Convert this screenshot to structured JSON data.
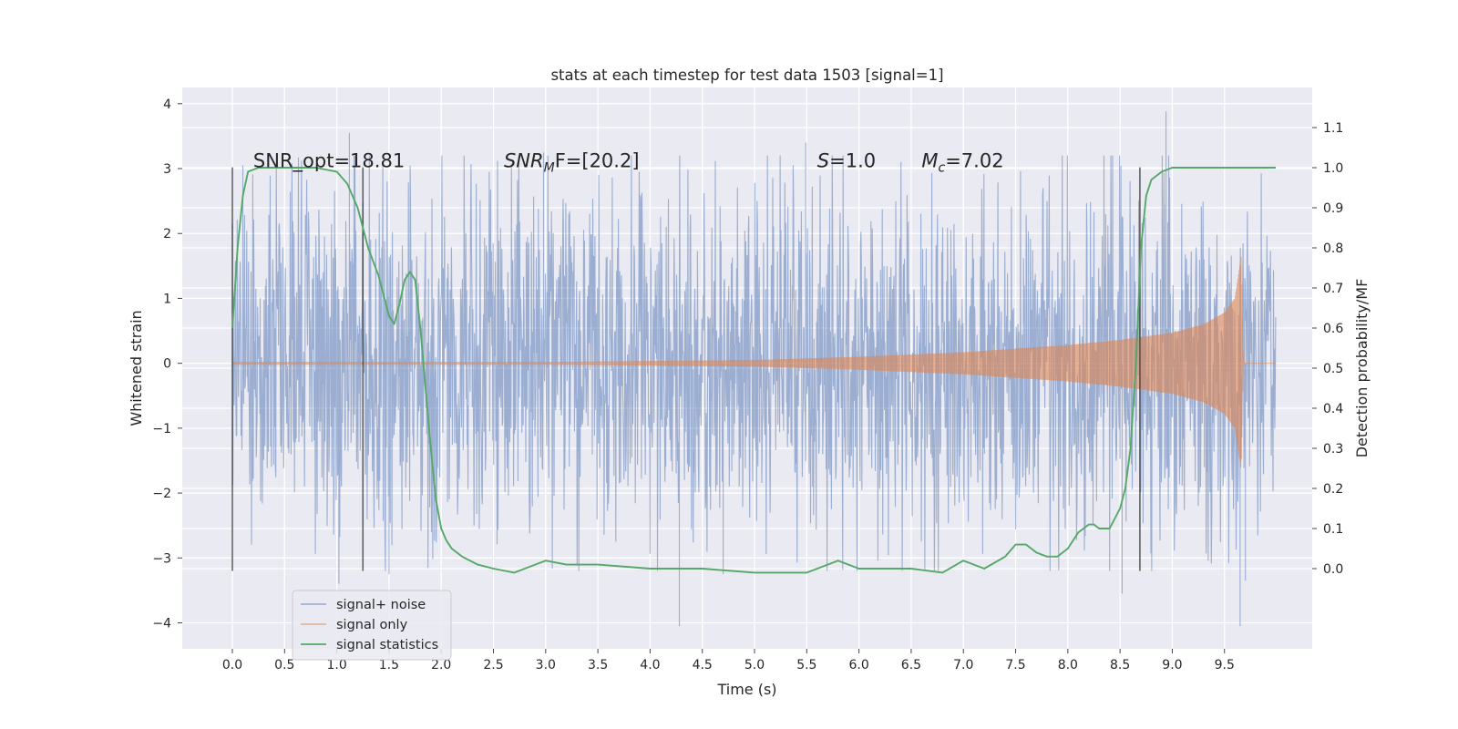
{
  "chart_data": {
    "type": "line",
    "title": "stats at each timestep for test data 1503 [signal=1]",
    "xlabel": "Time (s)",
    "ylabel_left": "Whitened strain",
    "ylabel_right": "Detection probability/MF",
    "xlim": [
      -0.48,
      10.34
    ],
    "ylim_left": [
      -4.4,
      4.25
    ],
    "ylim_right": [
      -0.2,
      1.2
    ],
    "x_ticks": [
      "0.0",
      "0.5",
      "1.0",
      "1.5",
      "2.0",
      "2.5",
      "3.0",
      "3.5",
      "4.0",
      "4.5",
      "5.0",
      "5.5",
      "6.0",
      "6.5",
      "7.0",
      "7.5",
      "8.0",
      "8.5",
      "9.0",
      "9.5"
    ],
    "y_ticks_left": [
      "−4",
      "−3",
      "−2",
      "−1",
      "0",
      "1",
      "2",
      "3",
      "4"
    ],
    "y_ticks_right": [
      "0.0",
      "0.1",
      "0.2",
      "0.3",
      "0.4",
      "0.5",
      "0.6",
      "0.7",
      "0.8",
      "0.9",
      "1.0",
      "1.1"
    ],
    "grid": true,
    "legend_position": "lower-left",
    "annotations": [
      {
        "label": "SNR_opt=18.81",
        "x": 0.2,
        "y": 3.02
      },
      {
        "sym": "SNR",
        "sub": "M",
        "rest": "F=[20.2]",
        "x": 2.6,
        "y": 3.02
      },
      {
        "sym": "S",
        "rest": "=1.0",
        "x": 5.6,
        "y": 3.02
      },
      {
        "sym": "M",
        "sub": "c",
        "rest": "=7.02",
        "x": 6.6,
        "y": 3.02
      }
    ],
    "vertical_markers": [
      {
        "x": 0.0,
        "y0": -3.2,
        "y1": 3.02
      },
      {
        "x": 1.25,
        "y0": -3.2,
        "y1": 3.02
      },
      {
        "x": 8.69,
        "y0": -3.2,
        "y1": 3.02
      }
    ],
    "series": [
      {
        "name": "signal+ noise",
        "color": "#4c72b0",
        "alpha": 0.5,
        "axis": "left",
        "x_range": [
          0.0,
          9.99
        ],
        "envelope": {
          "x": [
            0.0,
            1.0,
            2.0,
            3.0,
            4.0,
            5.0,
            6.0,
            7.0,
            8.0,
            8.5,
            9.0,
            9.5,
            9.99
          ],
          "upper_typical": [
            1.85,
            1.95,
            1.9,
            1.9,
            1.85,
            1.9,
            1.9,
            1.85,
            1.85,
            1.95,
            1.95,
            1.9,
            1.85
          ],
          "lower_typical": [
            -1.75,
            -1.85,
            -1.85,
            -1.85,
            -1.85,
            -1.85,
            -1.85,
            -1.85,
            -1.85,
            -1.9,
            -1.9,
            -1.85,
            -1.75
          ]
        },
        "peaks": [
          {
            "x": 1.12,
            "y": 3.55
          },
          {
            "x": 8.94,
            "y": 3.88
          },
          {
            "x": 5.49,
            "y": 3.4
          },
          {
            "x": 0.1,
            "y": 3.05
          },
          {
            "x": 2.98,
            "y": 3.25
          },
          {
            "x": 1.02,
            "y": -3.4
          },
          {
            "x": 4.28,
            "y": -4.05
          },
          {
            "x": 9.65,
            "y": -4.05
          },
          {
            "x": 8.52,
            "y": -3.55
          },
          {
            "x": 1.5,
            "y": -3.25
          },
          {
            "x": 4.7,
            "y": -3.25
          },
          {
            "x": 9.7,
            "y": -3.35
          }
        ]
      },
      {
        "name": "signal only",
        "color": "#dd8452",
        "alpha": 0.6,
        "axis": "left",
        "x_range": [
          0.0,
          9.99
        ],
        "amplitude_envelope": {
          "x": [
            0.0,
            3.0,
            5.0,
            6.0,
            7.0,
            8.0,
            8.5,
            9.0,
            9.3,
            9.5,
            9.6,
            9.66,
            9.68,
            10.0
          ],
          "y": [
            0.02,
            0.02,
            0.05,
            0.1,
            0.17,
            0.28,
            0.36,
            0.47,
            0.6,
            0.78,
            1.0,
            1.65,
            0.0,
            0.0
          ]
        }
      },
      {
        "name": "signal statistics",
        "color": "#55a868",
        "alpha": 1.0,
        "axis": "right",
        "x": [
          0.0,
          0.05,
          0.1,
          0.15,
          0.25,
          0.4,
          0.6,
          0.8,
          1.0,
          1.1,
          1.2,
          1.3,
          1.4,
          1.5,
          1.55,
          1.6,
          1.65,
          1.7,
          1.75,
          1.8,
          1.85,
          1.9,
          1.95,
          2.0,
          2.05,
          2.1,
          2.2,
          2.35,
          2.5,
          2.7,
          3.0,
          3.2,
          3.5,
          4.0,
          4.5,
          5.0,
          5.5,
          5.8,
          6.0,
          6.5,
          6.8,
          7.0,
          7.2,
          7.4,
          7.5,
          7.6,
          7.7,
          7.8,
          7.9,
          8.0,
          8.1,
          8.2,
          8.25,
          8.3,
          8.4,
          8.5,
          8.55,
          8.6,
          8.65,
          8.7,
          8.75,
          8.8,
          8.9,
          9.0,
          9.3,
          9.6,
          9.99
        ],
        "y": [
          0.6,
          0.8,
          0.93,
          0.99,
          1.0,
          1.0,
          1.0,
          1.0,
          0.99,
          0.96,
          0.9,
          0.8,
          0.73,
          0.63,
          0.61,
          0.66,
          0.72,
          0.74,
          0.72,
          0.6,
          0.45,
          0.3,
          0.17,
          0.1,
          0.07,
          0.05,
          0.03,
          0.01,
          0.0,
          -0.01,
          0.02,
          0.01,
          0.01,
          0.0,
          0.0,
          -0.01,
          -0.01,
          0.02,
          0.0,
          0.0,
          -0.01,
          0.02,
          0.0,
          0.03,
          0.06,
          0.06,
          0.04,
          0.03,
          0.03,
          0.05,
          0.09,
          0.11,
          0.11,
          0.1,
          0.1,
          0.15,
          0.2,
          0.3,
          0.5,
          0.8,
          0.93,
          0.97,
          0.99,
          1.0,
          1.0,
          1.0,
          1.0
        ]
      }
    ]
  }
}
